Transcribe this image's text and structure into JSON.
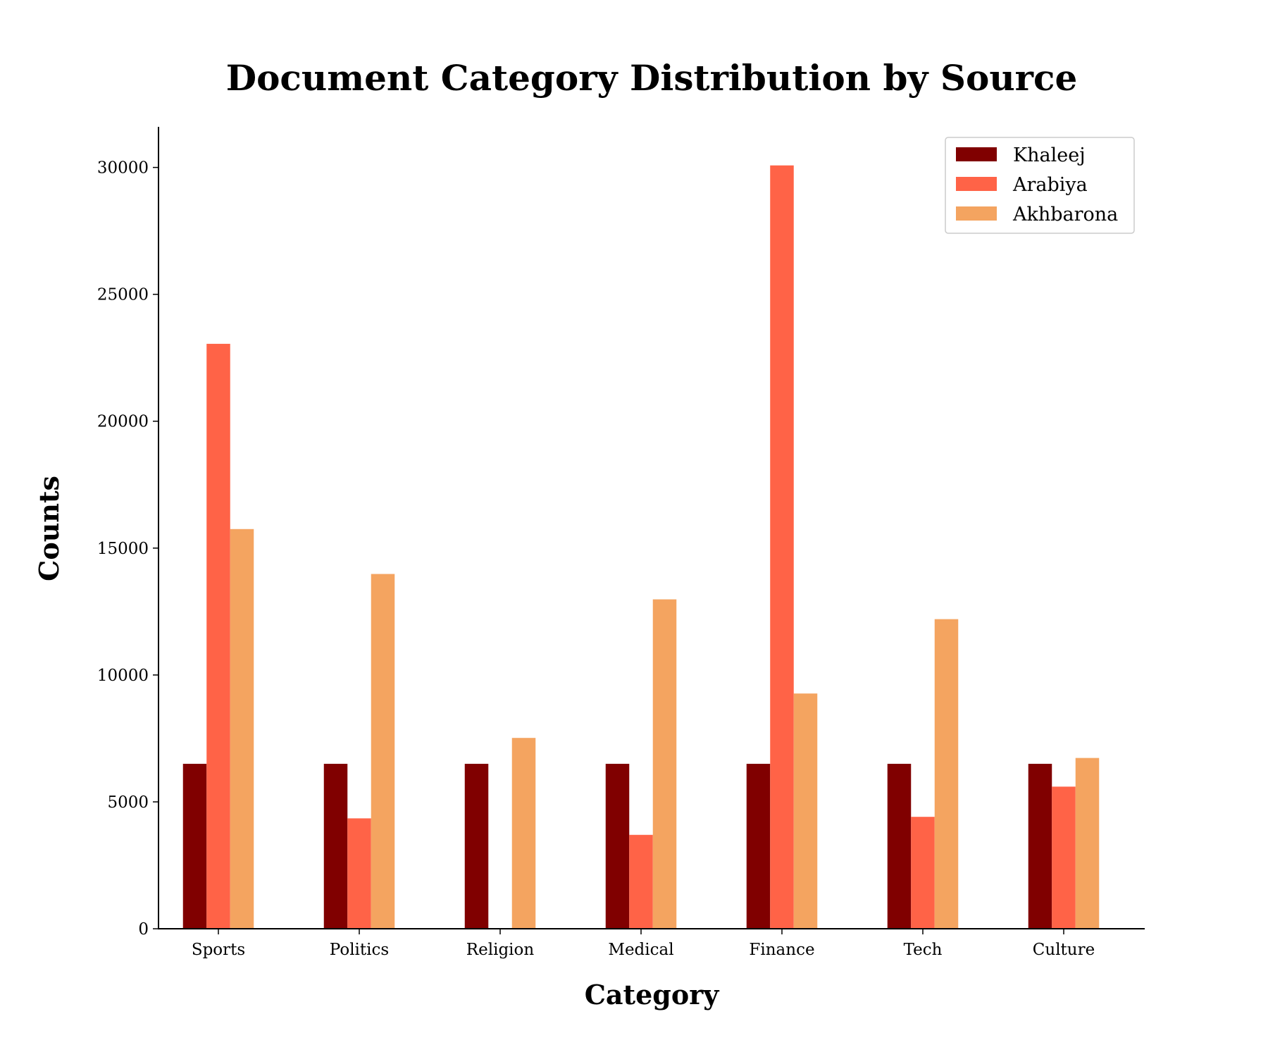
{
  "chart_data": {
    "type": "bar",
    "title": "Document Category Distribution by Source",
    "xlabel": "Category",
    "ylabel": "Counts",
    "categories": [
      "Sports",
      "Politics",
      "Religion",
      "Medical",
      "Finance",
      "Tech",
      "Culture"
    ],
    "series": [
      {
        "name": "Khaleej",
        "color": "#800000",
        "values": [
          6500,
          6500,
          6500,
          6500,
          6500,
          6500,
          6500
        ]
      },
      {
        "name": "Arabiya",
        "color": "#FF6347",
        "values": [
          23050,
          4350,
          0,
          3700,
          30080,
          4410,
          5600
        ]
      },
      {
        "name": "Akhbarona",
        "color": "#F4A460",
        "values": [
          15750,
          13980,
          7520,
          12980,
          9270,
          12200,
          6730
        ]
      }
    ],
    "yticks": [
      0,
      5000,
      10000,
      15000,
      20000,
      25000,
      30000
    ],
    "ylim": [
      0,
      31600
    ],
    "grid": false,
    "legend_position": "top-right"
  }
}
